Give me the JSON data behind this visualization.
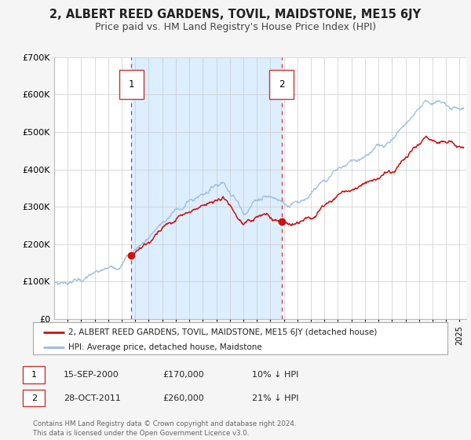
{
  "title": "2, ALBERT REED GARDENS, TOVIL, MAIDSTONE, ME15 6JY",
  "subtitle": "Price paid vs. HM Land Registry's House Price Index (HPI)",
  "background_color": "#f5f5f5",
  "plot_bg_color": "#ffffff",
  "shaded_region_color": "#dceeff",
  "grid_color": "#cccccc",
  "hpi_line_color": "#99bbdd",
  "price_line_color": "#cc1111",
  "sale1_x": 2000.71,
  "sale1_price": 170000,
  "sale2_x": 2011.83,
  "sale2_price": 260000,
  "ylim": [
    0,
    700000
  ],
  "xlim": [
    1995.0,
    2025.5
  ],
  "yticks": [
    0,
    100000,
    200000,
    300000,
    400000,
    500000,
    600000,
    700000
  ],
  "ytick_labels": [
    "£0",
    "£100K",
    "£200K",
    "£300K",
    "£400K",
    "£500K",
    "£600K",
    "£700K"
  ],
  "legend_label_price": "2, ALBERT REED GARDENS, TOVIL, MAIDSTONE, ME15 6JY (detached house)",
  "legend_label_hpi": "HPI: Average price, detached house, Maidstone",
  "annotation1_date": "15-SEP-2000",
  "annotation1_price": "£170,000",
  "annotation1_hpi": "10% ↓ HPI",
  "annotation2_date": "28-OCT-2011",
  "annotation2_price": "£260,000",
  "annotation2_hpi": "21% ↓ HPI",
  "footnote": "Contains HM Land Registry data © Crown copyright and database right 2024.\nThis data is licensed under the Open Government Licence v3.0.",
  "title_fontsize": 10.5,
  "subtitle_fontsize": 9
}
